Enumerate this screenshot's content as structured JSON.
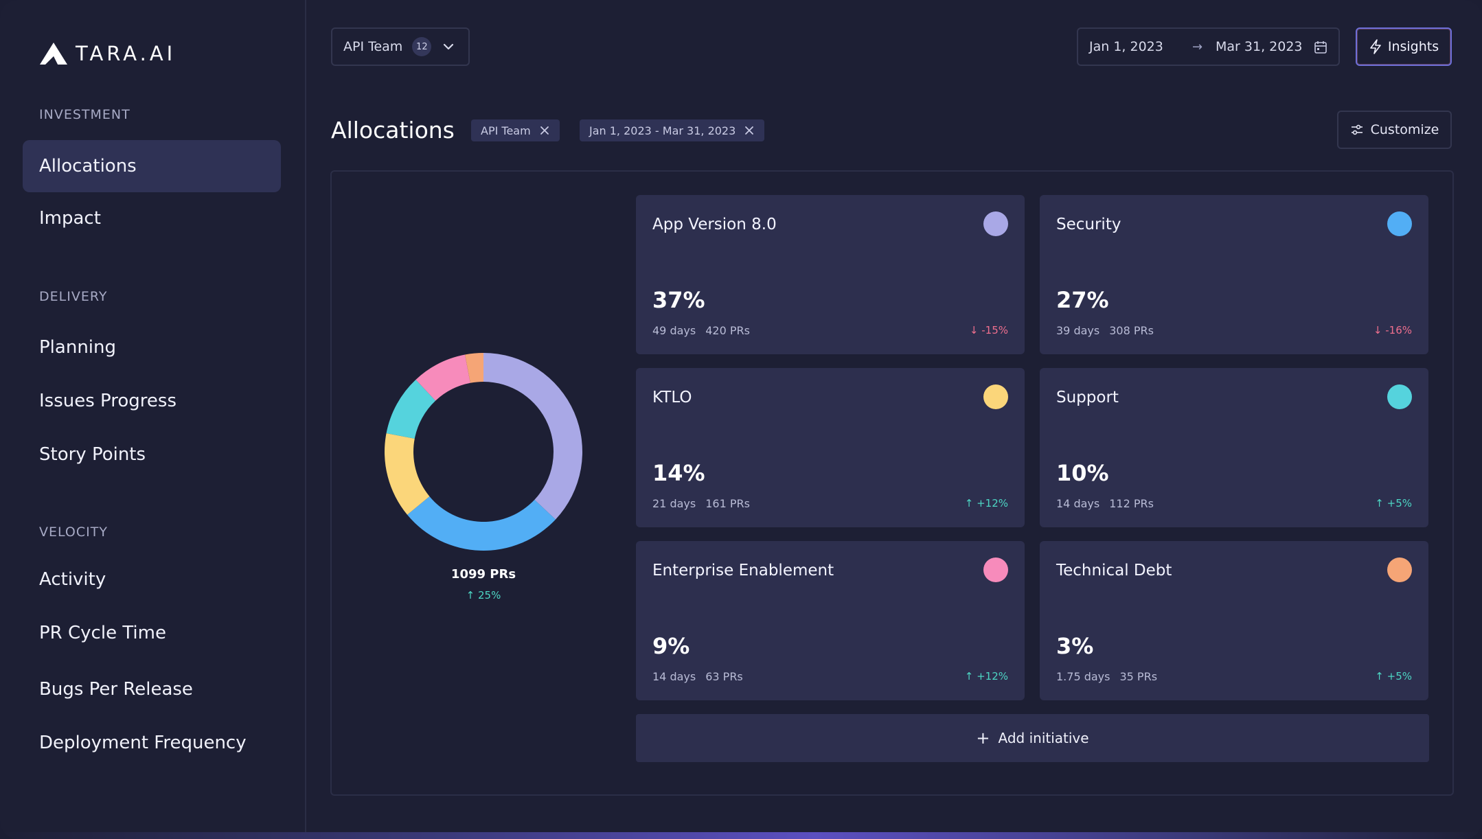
{
  "brand": {
    "name": "TARA.AI"
  },
  "sidebar": {
    "sections": [
      {
        "label": "INVESTMENT",
        "items": [
          {
            "label": "Allocations",
            "active": true
          },
          {
            "label": "Impact"
          }
        ]
      },
      {
        "label": "DELIVERY",
        "items": [
          {
            "label": "Planning"
          },
          {
            "label": "Issues Progress"
          },
          {
            "label": "Story Points"
          }
        ]
      },
      {
        "label": "VELOCITY",
        "items": [
          {
            "label": "Activity"
          },
          {
            "label": "PR Cycle Time"
          },
          {
            "label": "Bugs Per Release"
          },
          {
            "label": "Deployment Frequency"
          }
        ]
      }
    ]
  },
  "topbar": {
    "team": {
      "label": "API Team",
      "count": "12"
    },
    "date_range": {
      "start": "Jan 1, 2023",
      "end": "Mar 31, 2023",
      "arrow": "→"
    },
    "insights_label": "Insights"
  },
  "page": {
    "title": "Allocations",
    "filters": [
      {
        "label": "API Team"
      },
      {
        "label": "Jan 1, 2023 - Mar 31, 2023"
      }
    ],
    "customize_label": "Customize"
  },
  "summary": {
    "total_prs": "1099 PRs",
    "change": "↑ 25%"
  },
  "chart_data": {
    "type": "pie",
    "donut": true,
    "slices": [
      {
        "label": "App Version 8.0",
        "value": 37,
        "color": "#a9a8e6"
      },
      {
        "label": "Security",
        "value": 27,
        "color": "#52aef5"
      },
      {
        "label": "KTLO",
        "value": 14,
        "color": "#fbd67a"
      },
      {
        "label": "Support",
        "value": 10,
        "color": "#55d3dd"
      },
      {
        "label": "Enterprise Enablement",
        "value": 9,
        "color": "#f78bbb"
      },
      {
        "label": "Technical Debt",
        "value": 3,
        "color": "#f5a576"
      }
    ]
  },
  "initiatives": [
    {
      "name": "App Version 8.0",
      "pct": "37%",
      "days": "49 days",
      "prs": "420 PRs",
      "change": "↓ -15%",
      "trend": "down",
      "color": "#a9a8e6"
    },
    {
      "name": "Security",
      "pct": "27%",
      "days": "39 days",
      "prs": "308 PRs",
      "change": "↓ -16%",
      "trend": "down",
      "color": "#52aef5"
    },
    {
      "name": "KTLO",
      "pct": "14%",
      "days": "21 days",
      "prs": "161 PRs",
      "change": "↑ +12%",
      "trend": "up",
      "color": "#fbd67a"
    },
    {
      "name": "Support",
      "pct": "10%",
      "days": "14 days",
      "prs": "112 PRs",
      "change": "↑ +5%",
      "trend": "up",
      "color": "#55d3dd"
    },
    {
      "name": "Enterprise Enablement",
      "pct": "9%",
      "days": "14 days",
      "prs": "63 PRs",
      "change": "↑ +12%",
      "trend": "up",
      "color": "#f78bbb"
    },
    {
      "name": "Technical Debt",
      "pct": "3%",
      "days": "1.75 days",
      "prs": "35 PRs",
      "change": "↑ +5%",
      "trend": "up",
      "color": "#f5a576"
    }
  ],
  "add_initiative": {
    "icon": "+",
    "label": "Add initiative"
  }
}
